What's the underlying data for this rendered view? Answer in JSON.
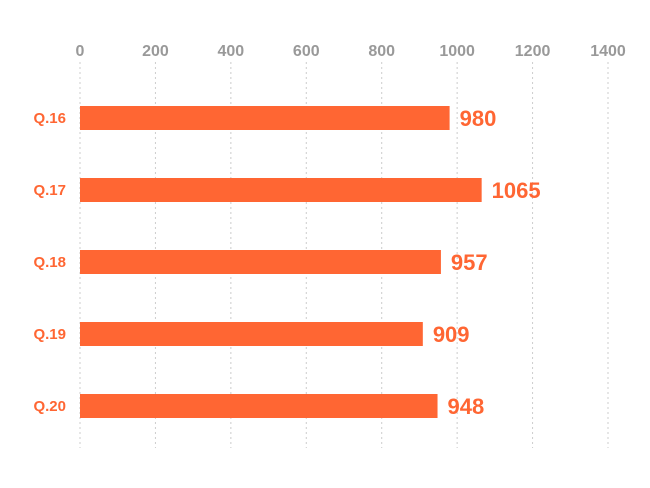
{
  "chart_data": {
    "type": "bar",
    "orientation": "horizontal",
    "categories": [
      "Q.16",
      "Q.17",
      "Q.18",
      "Q.19",
      "Q.20"
    ],
    "values": [
      980,
      1065,
      957,
      909,
      948
    ],
    "xlim": [
      0,
      1400
    ],
    "x_ticks": [
      0,
      200,
      400,
      600,
      800,
      1000,
      1200,
      1400
    ],
    "tick_labels": [
      "0",
      "200",
      "400",
      "600",
      "800",
      "1000",
      "1200",
      "1400"
    ],
    "value_labels": [
      "980",
      "1065",
      "957",
      "909",
      "948"
    ],
    "axis_position": "top",
    "grid": true,
    "legend": "none",
    "colors": {
      "bar": "#FF6633",
      "label": "#FF6633",
      "tick": "#999999",
      "grid": "#CCCCCC"
    }
  }
}
